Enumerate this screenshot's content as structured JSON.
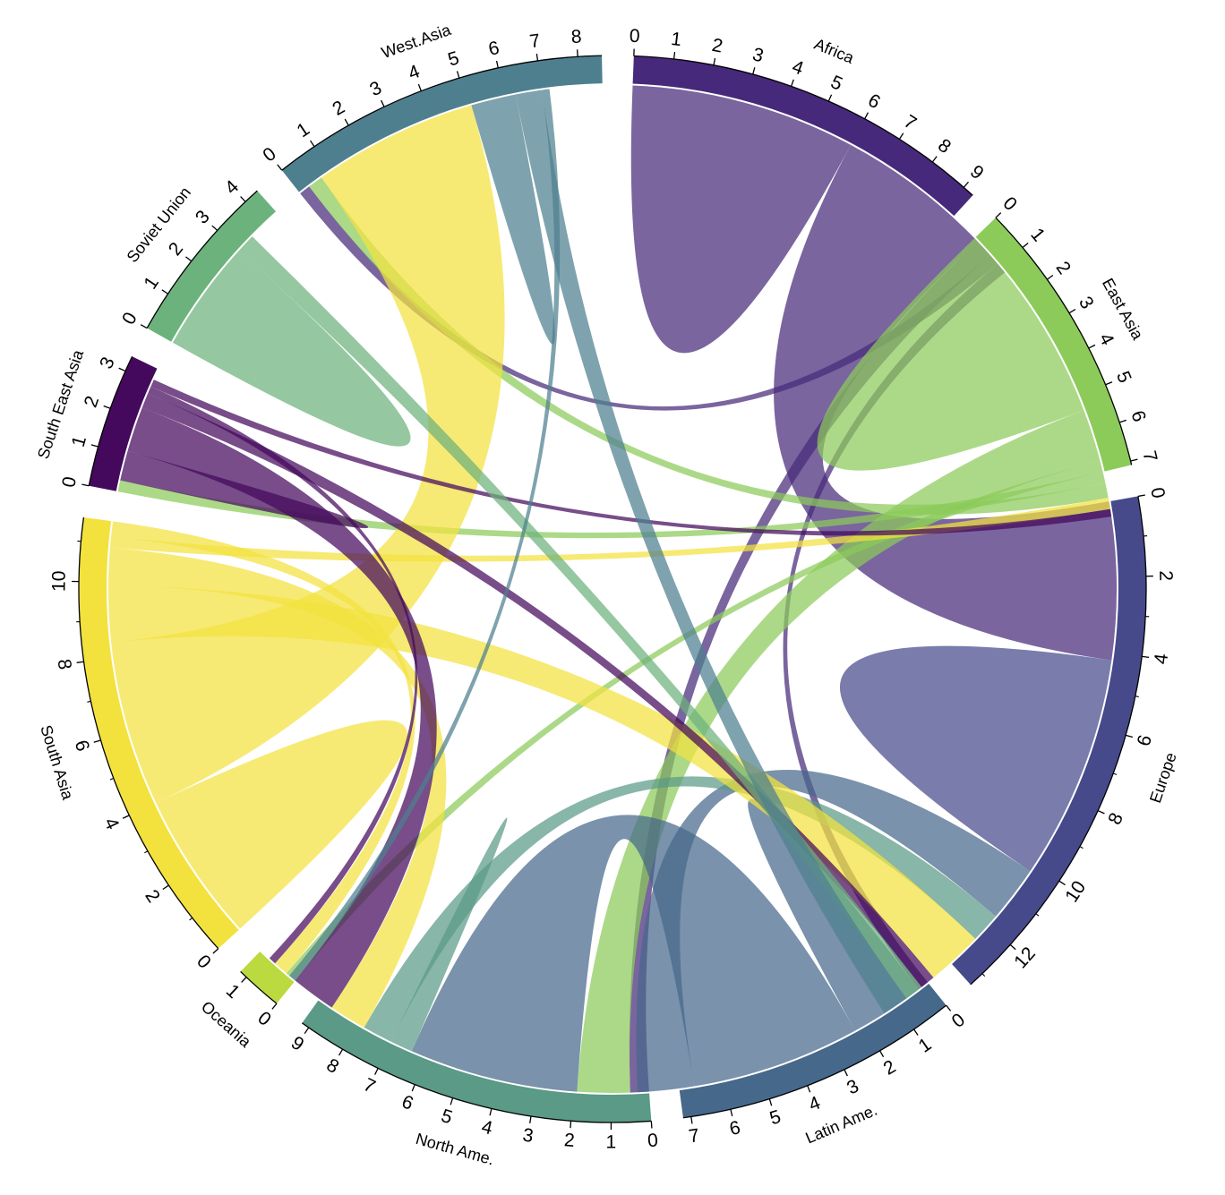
{
  "chart_data": {
    "type": "chord",
    "title": "",
    "unit_note": "",
    "regions": [
      {
        "name": "Africa",
        "total": 9.3,
        "color": "#46297a"
      },
      {
        "name": "East Asia",
        "total": 7.1,
        "color": "#8ccb5a"
      },
      {
        "name": "Europe",
        "total": 13.4,
        "color": "#46498a"
      },
      {
        "name": "Latin Ame.",
        "total": 7.2,
        "color": "#46688a"
      },
      {
        "name": "North Ame.",
        "total": 9.2,
        "color": "#5a9a86"
      },
      {
        "name": "Oceania",
        "total": 1.2,
        "color": "#bada3f"
      },
      {
        "name": "South Asia",
        "total": 11.6,
        "color": "#f3e23e"
      },
      {
        "name": "South East Asia",
        "total": 3.4,
        "color": "#44095c"
      },
      {
        "name": "Soviet Union",
        "total": 4.4,
        "color": "#6cb27c"
      },
      {
        "name": "West.Asia",
        "total": 8.6,
        "color": "#4e7f8f"
      }
    ],
    "flows": [
      {
        "from": "Africa",
        "to": "Africa",
        "value": 3.0
      },
      {
        "from": "Africa",
        "to": "Europe",
        "value": 4.2
      },
      {
        "from": "Africa",
        "to": "North Ame.",
        "value": 0.5
      },
      {
        "from": "Africa",
        "to": "West.Asia",
        "value": 0.3
      },
      {
        "from": "Africa",
        "to": "Latin Ame.",
        "value": 0.3
      },
      {
        "from": "East Asia",
        "to": "East Asia",
        "value": 2.7
      },
      {
        "from": "East Asia",
        "to": "North Ame.",
        "value": 1.4
      },
      {
        "from": "East Asia",
        "to": "Oceania",
        "value": 0.3
      },
      {
        "from": "East Asia",
        "to": "South East Asia",
        "value": 0.3
      },
      {
        "from": "East Asia",
        "to": "West.Asia",
        "value": 0.4
      },
      {
        "from": "Europe",
        "to": "Europe",
        "value": 3.0
      },
      {
        "from": "Latin Ame.",
        "to": "Latin Ame.",
        "value": 1.0
      },
      {
        "from": "Latin Ame.",
        "to": "North Ame.",
        "value": 4.5
      },
      {
        "from": "Latin Ame.",
        "to": "Europe",
        "value": 1.5
      },
      {
        "from": "North Ame.",
        "to": "North Ame.",
        "value": 0.3
      },
      {
        "from": "North Ame.",
        "to": "Europe",
        "value": 0.8
      },
      {
        "from": "South Asia",
        "to": "South Asia",
        "value": 2.0
      },
      {
        "from": "South Asia",
        "to": "West.Asia",
        "value": 4.4
      },
      {
        "from": "South Asia",
        "to": "Europe",
        "value": 1.5
      },
      {
        "from": "South Asia",
        "to": "North Ame.",
        "value": 1.0
      },
      {
        "from": "South Asia",
        "to": "East Asia",
        "value": 0.3
      },
      {
        "from": "South Asia",
        "to": "Oceania",
        "value": 0.4
      },
      {
        "from": "South East Asia",
        "to": "South East Asia",
        "value": 0.4
      },
      {
        "from": "South East Asia",
        "to": "North Ame.",
        "value": 1.2
      },
      {
        "from": "South East Asia",
        "to": "Europe",
        "value": 0.4
      },
      {
        "from": "South East Asia",
        "to": "Oceania",
        "value": 0.2
      },
      {
        "from": "South East Asia",
        "to": "East Asia",
        "value": 0.2
      },
      {
        "from": "Soviet Union",
        "to": "Soviet Union",
        "value": 1.5
      },
      {
        "from": "Soviet Union",
        "to": "Europe",
        "value": 0.5
      },
      {
        "from": "West.Asia",
        "to": "West.Asia",
        "value": 0.6
      },
      {
        "from": "West.Asia",
        "to": "Europe",
        "value": 0.7
      },
      {
        "from": "West.Asia",
        "to": "North Ame.",
        "value": 0.2
      }
    ]
  }
}
